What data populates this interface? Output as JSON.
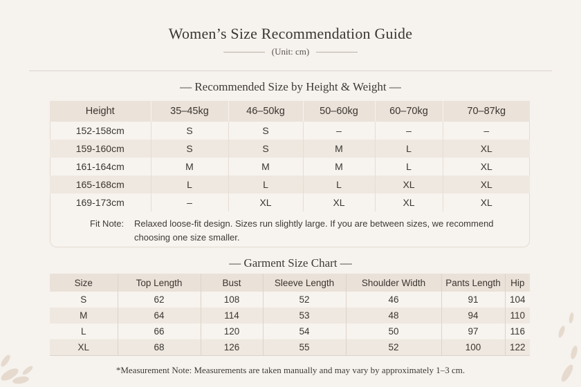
{
  "title": "Women’s Size Recommendation Guide",
  "unit": "(Unit: cm)",
  "section1": {
    "title": "— Recommended Size by Height & Weight —",
    "headers": [
      "Height",
      "35–45kg",
      "46–50kg",
      "50–60kg",
      "60–70kg",
      "70–87kg"
    ],
    "rows": [
      [
        "152-158cm",
        "S",
        "S",
        "–",
        "–",
        "–"
      ],
      [
        "159-160cm",
        "S",
        "S",
        "M",
        "L",
        "XL"
      ],
      [
        "161-164cm",
        "M",
        "M",
        "M",
        "L",
        "XL"
      ],
      [
        "165-168cm",
        "L",
        "L",
        "L",
        "XL",
        "XL"
      ],
      [
        "169-173cm",
        "–",
        "XL",
        "XL",
        "XL",
        "XL"
      ]
    ],
    "fit_note_label": "Fit Note:",
    "fit_note_text": "Relaxed loose-fit design. Sizes run slightly large. If you are between sizes, we recommend choosing one size smaller."
  },
  "section2": {
    "title": "— Garment Size Chart —",
    "headers": [
      "Size",
      "Top Length",
      "Bust",
      "Sleeve Length",
      "Shoulder Width",
      "Pants Length",
      "Hip"
    ],
    "rows": [
      [
        "S",
        "62",
        "108",
        "52",
        "46",
        "91",
        "104"
      ],
      [
        "M",
        "64",
        "114",
        "53",
        "48",
        "94",
        "110"
      ],
      [
        "L",
        "66",
        "120",
        "54",
        "50",
        "97",
        "116"
      ],
      [
        "XL",
        "68",
        "126",
        "55",
        "52",
        "100",
        "122"
      ]
    ]
  },
  "measurement_note": "*Measurement Note: Measurements are taken manually and may vary by approximately 1–3 cm."
}
